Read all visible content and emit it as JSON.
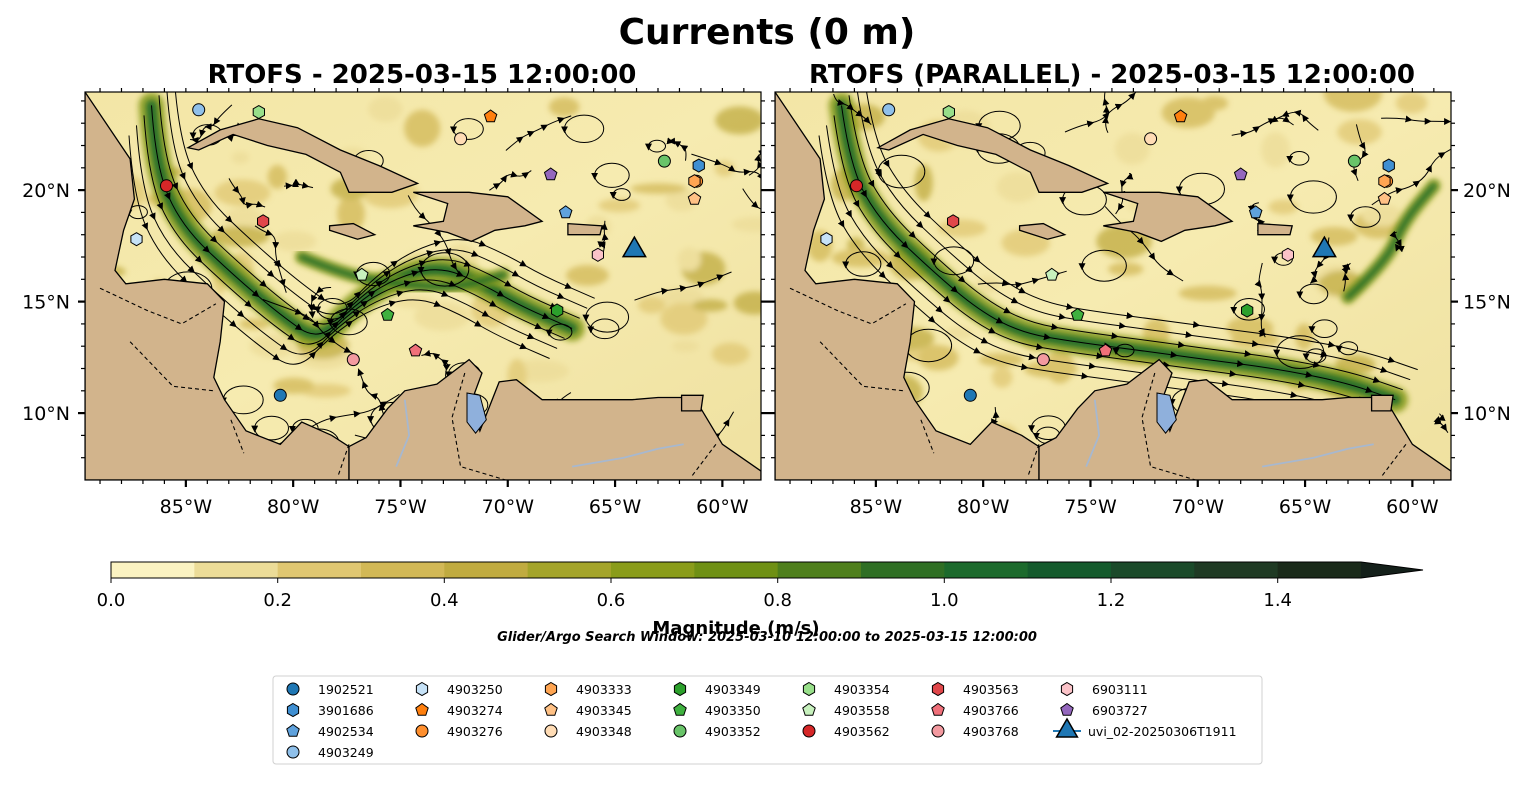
{
  "figure": {
    "title": "Currents (0 m)",
    "search_window": "Glider/Argo Search Window: 2025-03-10 12:00:00 to 2025-03-15 12:00:00"
  },
  "colors": {
    "land": "#d2b48c",
    "lake": "#8fb0dc",
    "ocean_low": "#fdf5c3",
    "ocean_high": "#1a2a16"
  },
  "chart_data": {
    "type": "heatmap",
    "variable": "Currents (0 m)",
    "panels": [
      {
        "title": "RTOFS - 2025-03-15 12:00:00"
      },
      {
        "title": "RTOFS (PARALLEL) - 2025-03-15 12:00:00"
      }
    ],
    "xlim": [
      -89.7,
      -58.2
    ],
    "ylim": [
      7.0,
      24.4
    ],
    "x_ticks": [
      -85,
      -80,
      -75,
      -70,
      -65,
      -60
    ],
    "x_tick_labels": [
      "85°W",
      "80°W",
      "75°W",
      "70°W",
      "65°W",
      "60°W"
    ],
    "y_ticks": [
      10,
      15,
      20
    ],
    "y_tick_labels": [
      "10°N",
      "15°N",
      "20°N"
    ],
    "colorbar": {
      "label": "Magnitude (m/s)",
      "range": [
        0.0,
        1.5
      ],
      "step": 0.1,
      "extend": "max",
      "tick_labels": [
        "0.0",
        "0.2",
        "0.4",
        "0.6",
        "0.8",
        "1.0",
        "1.2",
        "1.4"
      ],
      "colors": [
        "#fbf3c2",
        "#ecdc98",
        "#e0c772",
        "#d2b856",
        "#c0ab40",
        "#a4a42a",
        "#8a9c1a",
        "#6f9014",
        "#4f7f1c",
        "#2f6f24",
        "#1c6a2c",
        "#145a2c",
        "#1b4a2a",
        "#1f3a24",
        "#1a2a1a",
        "#14201a"
      ]
    },
    "markers": [
      {
        "id": "1902521",
        "lon": -80.6,
        "lat": 10.8,
        "shape": "circle",
        "color": "#1f77b4"
      },
      {
        "id": "3901686",
        "lon": -61.1,
        "lat": 21.1,
        "shape": "hexagon",
        "color": "#3f8fd2"
      },
      {
        "id": "4902534",
        "lon": -67.3,
        "lat": 19.0,
        "shape": "pentagon",
        "color": "#5fa2dd"
      },
      {
        "id": "4903249",
        "lon": -84.4,
        "lat": 23.6,
        "shape": "circle",
        "color": "#8fc0ea"
      },
      {
        "id": "4903250",
        "lon": -87.3,
        "lat": 17.8,
        "shape": "hexagon",
        "color": "#c6e2f7"
      },
      {
        "id": "4903274",
        "lon": -70.8,
        "lat": 23.3,
        "shape": "pentagon",
        "color": "#ff7f0e"
      },
      {
        "id": "4903276",
        "lon": -61.2,
        "lat": 20.4,
        "shape": "circle",
        "color": "#ff8f2e"
      },
      {
        "id": "4903333",
        "lon": -61.3,
        "lat": 20.4,
        "shape": "hexagon",
        "color": "#ffa552"
      },
      {
        "id": "4903345",
        "lon": -61.3,
        "lat": 19.6,
        "shape": "pentagon",
        "color": "#ffc185"
      },
      {
        "id": "4903348",
        "lon": -72.2,
        "lat": 22.3,
        "shape": "circle",
        "color": "#ffdcb5"
      },
      {
        "id": "4903349",
        "lon": -67.7,
        "lat": 14.6,
        "shape": "hexagon",
        "color": "#2ca02c"
      },
      {
        "id": "4903350",
        "lon": -75.6,
        "lat": 14.4,
        "shape": "pentagon",
        "color": "#3fb13f"
      },
      {
        "id": "4903352",
        "lon": -62.7,
        "lat": 21.3,
        "shape": "circle",
        "color": "#69c469"
      },
      {
        "id": "4903354",
        "lon": -81.6,
        "lat": 23.5,
        "shape": "hexagon",
        "color": "#98df8a"
      },
      {
        "id": "4903558",
        "lon": -76.8,
        "lat": 16.2,
        "shape": "pentagon",
        "color": "#c7f1bd"
      },
      {
        "id": "4903562",
        "lon": -85.9,
        "lat": 20.2,
        "shape": "circle",
        "color": "#d62728"
      },
      {
        "id": "4903563",
        "lon": -81.4,
        "lat": 18.6,
        "shape": "hexagon",
        "color": "#e0474a"
      },
      {
        "id": "4903766",
        "lon": -74.3,
        "lat": 12.8,
        "shape": "pentagon",
        "color": "#f0707a"
      },
      {
        "id": "4903768",
        "lon": -77.2,
        "lat": 12.4,
        "shape": "circle",
        "color": "#f39aa0"
      },
      {
        "id": "6903111",
        "lon": -65.8,
        "lat": 17.1,
        "shape": "hexagon",
        "color": "#fbc3c8"
      },
      {
        "id": "6903727",
        "lon": -68.0,
        "lat": 20.7,
        "shape": "pentagon",
        "color": "#9467bd"
      },
      {
        "id": "uvi_02-20250306T1911",
        "lon": -64.1,
        "lat": 17.4,
        "shape": "triangle",
        "color": "#1f77b4"
      }
    ]
  }
}
